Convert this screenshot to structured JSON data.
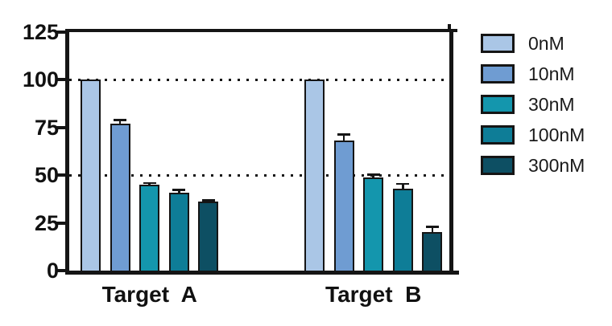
{
  "chart_data": {
    "type": "bar",
    "title": "",
    "xlabel": "",
    "ylabel": "",
    "categories": [
      "Target  A",
      "Target  B"
    ],
    "series": [
      {
        "name": "0nM",
        "color": "#aac6e6",
        "values": [
          100,
          100
        ],
        "errors": [
          0,
          0
        ]
      },
      {
        "name": "10nM",
        "color": "#6f9cd2",
        "values": [
          77,
          68
        ],
        "errors": [
          2,
          3.5
        ]
      },
      {
        "name": "30nM",
        "color": "#1496ad",
        "values": [
          45,
          49
        ],
        "errors": [
          1,
          1.5
        ]
      },
      {
        "name": "100nM",
        "color": "#0e7d97",
        "values": [
          41,
          43
        ],
        "errors": [
          1.5,
          2.5
        ]
      },
      {
        "name": "300nM",
        "color": "#0d4f63",
        "values": [
          36,
          20
        ],
        "errors": [
          1,
          3
        ]
      }
    ],
    "ylim": [
      0,
      125
    ],
    "yticks": [
      0,
      25,
      50,
      75,
      100,
      125
    ],
    "gridlines_y": [
      50,
      100
    ],
    "grid_style": "dotted",
    "error_bars": "upper caps only",
    "legend_position": "right",
    "axis_color": "#151515",
    "background_color": "#ffffff"
  }
}
